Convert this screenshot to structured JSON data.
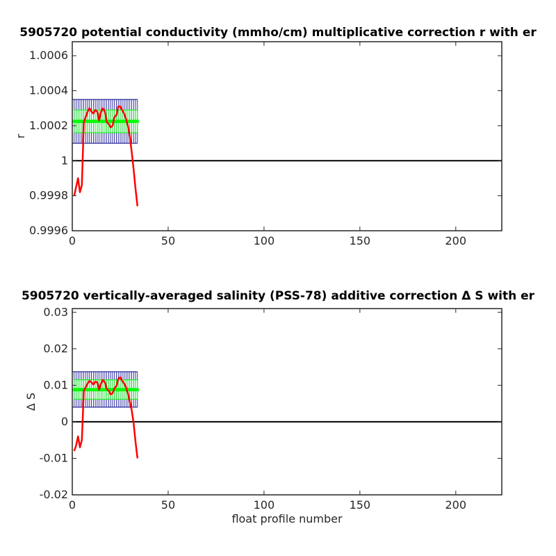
{
  "chart_data": [
    {
      "type": "line",
      "title": "5905720 potential conductivity (mmho/cm) multiplicative correction r with er",
      "xlabel": "",
      "ylabel": "r",
      "xlim": [
        0,
        224
      ],
      "ylim": [
        0.9996,
        1.00068
      ],
      "xticks": [
        0,
        50,
        100,
        150,
        200
      ],
      "xtick_labels": [
        "0",
        "50",
        "100",
        "150",
        "200"
      ],
      "yticks": [
        0.9996,
        0.9998,
        1,
        1.0002,
        1.0004,
        1.0006
      ],
      "ytick_labels": [
        "0.9996",
        "0.9998",
        "1",
        "1.0002",
        "1.0004",
        "1.0006"
      ],
      "reference_line": 1,
      "colors": {
        "correction": "#ff0000",
        "fit": "#00ff00",
        "error_band": "#00008b",
        "fit_error": "#00ff00",
        "reference": "#000000"
      },
      "series": [
        {
          "x": [
            1,
            2,
            3,
            4,
            5,
            6,
            7,
            8,
            9,
            10,
            11,
            12,
            13,
            14,
            15,
            16,
            17,
            18,
            19,
            20,
            21,
            22,
            23,
            24,
            25,
            26,
            27,
            28,
            29,
            30,
            31,
            32,
            33,
            34
          ],
          "values": [
            0.9998,
            0.99985,
            0.9999,
            0.99982,
            0.99986,
            1.00022,
            1.00025,
            1.00028,
            1.0003,
            1.00028,
            1.00027,
            1.00029,
            1.00028,
            1.00023,
            1.00028,
            1.0003,
            1.00028,
            1.00022,
            1.00021,
            1.00019,
            1.0002,
            1.00025,
            1.00026,
            1.00031,
            1.00031,
            1.00029,
            1.00027,
            1.00024,
            1.0002,
            1.00014,
            1.00005,
            0.99995,
            0.99984,
            0.99974
          ]
        },
        {
          "x": [
            1,
            34
          ],
          "values": [
            1.000225,
            1.000225
          ],
          "error_low": 1.00016,
          "error_high": 1.00029
        },
        {
          "x": [
            0,
            34
          ],
          "values": [
            1.000225,
            1.000225
          ],
          "error_low": 1.0001,
          "error_high": 1.00035
        }
      ]
    },
    {
      "type": "line",
      "title": "5905720 vertically-averaged salinity (PSS-78) additive correction Δ S with er",
      "xlabel": "float profile number",
      "ylabel": "Δ S",
      "xlim": [
        0,
        224
      ],
      "ylim": [
        -0.02,
        0.031
      ],
      "xticks": [
        0,
        50,
        100,
        150,
        200
      ],
      "xtick_labels": [
        "0",
        "50",
        "100",
        "150",
        "200"
      ],
      "yticks": [
        -0.02,
        -0.01,
        0,
        0.01,
        0.02,
        0.03
      ],
      "ytick_labels": [
        "-0.02",
        "-0.01",
        "0",
        "0.01",
        "0.02",
        "0.03"
      ],
      "reference_line": 0,
      "colors": {
        "correction": "#ff0000",
        "fit": "#00ff00",
        "error_band": "#00008b",
        "fit_error": "#00ff00",
        "reference": "#000000"
      },
      "series": [
        {
          "x": [
            1,
            2,
            3,
            4,
            5,
            6,
            7,
            8,
            9,
            10,
            11,
            12,
            13,
            14,
            15,
            16,
            17,
            18,
            19,
            20,
            21,
            22,
            23,
            24,
            25,
            26,
            27,
            28,
            29,
            30,
            31,
            32,
            33,
            34
          ],
          "values": [
            -0.008,
            -0.0065,
            -0.004,
            -0.007,
            -0.005,
            0.0085,
            0.0095,
            0.0105,
            0.0112,
            0.0108,
            0.0102,
            0.011,
            0.0108,
            0.0088,
            0.0105,
            0.0115,
            0.0108,
            0.009,
            0.0085,
            0.0075,
            0.0078,
            0.0092,
            0.0098,
            0.0118,
            0.0122,
            0.0112,
            0.0105,
            0.0095,
            0.0078,
            0.0055,
            0.0032,
            -0.0005,
            -0.0055,
            -0.01
          ]
        },
        {
          "x": [
            1,
            34
          ],
          "values": [
            0.0088,
            0.0088
          ],
          "error_low": 0.0062,
          "error_high": 0.0115
        },
        {
          "x": [
            0,
            34
          ],
          "values": [
            0.0088,
            0.0088
          ],
          "error_low": 0.004,
          "error_high": 0.0137
        }
      ]
    }
  ]
}
